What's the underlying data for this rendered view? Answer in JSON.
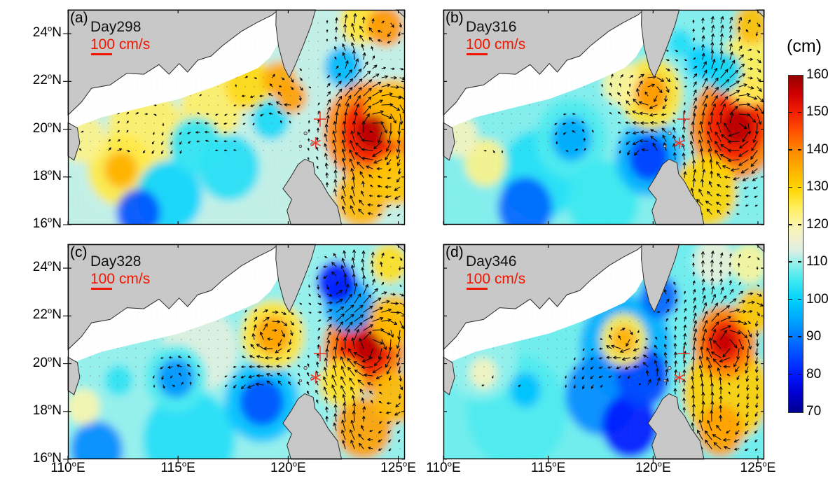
{
  "figure": {
    "background": "#ffffff",
    "land_color": "#c8c8c8",
    "coast_color": "#2b2b2b",
    "arrow_color": "#0a0a0a",
    "marker_color": "#ee3b2e",
    "scale_color": "#f21500",
    "scale_label": {
      "value": "100",
      "unit": "cm/s"
    },
    "axes": {
      "deg": "o",
      "x_values": [
        "110",
        "115",
        "120",
        "125"
      ],
      "x_suffix": "E",
      "y_values": [
        "24",
        "22",
        "20",
        "18",
        "16"
      ],
      "y_suffix": "N"
    },
    "colorbar": {
      "title": "(cm)",
      "min": 70,
      "max": 160,
      "ticks": [
        "160",
        "150",
        "140",
        "130",
        "120",
        "110",
        "100",
        "90",
        "80",
        "70"
      ],
      "stops": [
        {
          "v": 70,
          "c": "#000090"
        },
        {
          "v": 75,
          "c": "#0000cf"
        },
        {
          "v": 80,
          "c": "#0018ff"
        },
        {
          "v": 85,
          "c": "#0048ff"
        },
        {
          "v": 90,
          "c": "#0078ff"
        },
        {
          "v": 95,
          "c": "#00a8ff"
        },
        {
          "v": 100,
          "c": "#00d0ff"
        },
        {
          "v": 105,
          "c": "#3ce8f0"
        },
        {
          "v": 110,
          "c": "#96f0ec"
        },
        {
          "v": 113,
          "c": "#d8f0e4"
        },
        {
          "v": 116,
          "c": "#f0f0d2"
        },
        {
          "v": 120,
          "c": "#faf5ac"
        },
        {
          "v": 125,
          "c": "#ffee58"
        },
        {
          "v": 130,
          "c": "#ffd400"
        },
        {
          "v": 135,
          "c": "#ffb000"
        },
        {
          "v": 140,
          "c": "#ff8800"
        },
        {
          "v": 145,
          "c": "#ff5300"
        },
        {
          "v": 150,
          "c": "#f32000"
        },
        {
          "v": 155,
          "c": "#d00000"
        },
        {
          "v": 160,
          "c": "#940000"
        }
      ]
    }
  },
  "chart_data": {
    "type": "heatmap",
    "field": "sea surface height (cm)",
    "overlay": "surface current vectors, reference arrow 100 cm/s",
    "lon_range": [
      110,
      125.3
    ],
    "lat_range": [
      16,
      25
    ],
    "colorbar_range": [
      70,
      160
    ],
    "markers": [
      {
        "symbol": "+",
        "lon": 121.45,
        "lat": 20.42
      },
      {
        "symbol": "*",
        "lon": 121.25,
        "lat": 19.42
      }
    ],
    "panels": [
      {
        "label": "(a)",
        "day_label": "Day298",
        "base_ssh": 112,
        "features": [
          {
            "lon": 113.5,
            "lat": 20.0,
            "ssh": 124,
            "r": 1.7
          },
          {
            "lon": 116.5,
            "lat": 20.9,
            "ssh": 124,
            "r": 1.4
          },
          {
            "lon": 118.2,
            "lat": 21.9,
            "ssh": 129,
            "r": 1.1
          },
          {
            "lon": 119.6,
            "lat": 22.1,
            "ssh": 136,
            "r": 0.75
          },
          {
            "lon": 120.15,
            "lat": 21.35,
            "ssh": 137,
            "r": 0.7
          },
          {
            "lon": 112.4,
            "lat": 18.3,
            "ssh": 135,
            "r": 0.75
          },
          {
            "lon": 112.4,
            "lat": 18.3,
            "ssh": 126,
            "r": 1.5
          },
          {
            "lon": 110.7,
            "lat": 19.6,
            "ssh": 122,
            "r": 1.0
          },
          {
            "lon": 115.8,
            "lat": 19.3,
            "ssh": 104,
            "r": 1.2
          },
          {
            "lon": 117.3,
            "lat": 18.4,
            "ssh": 103,
            "r": 1.4
          },
          {
            "lon": 114.6,
            "lat": 17.2,
            "ssh": 101,
            "r": 1.5
          },
          {
            "lon": 113.2,
            "lat": 16.5,
            "ssh": 86,
            "r": 1.0
          },
          {
            "lon": 119.2,
            "lat": 20.4,
            "ssh": 102,
            "r": 0.85
          },
          {
            "lon": 122.5,
            "lat": 22.6,
            "ssh": 97,
            "r": 0.85
          },
          {
            "lon": 124.4,
            "lat": 24.3,
            "ssh": 138,
            "r": 0.85
          },
          {
            "lon": 123.3,
            "lat": 24.5,
            "ssh": 127,
            "r": 0.95
          },
          {
            "lon": 123.7,
            "lat": 19.9,
            "ssh": 140,
            "r": 2.1
          },
          {
            "lon": 123.7,
            "lat": 19.9,
            "ssh": 150,
            "r": 1.35
          },
          {
            "lon": 123.8,
            "lat": 19.9,
            "ssh": 157,
            "r": 0.7
          },
          {
            "lon": 123.3,
            "lat": 17.1,
            "ssh": 134,
            "r": 1.2
          },
          {
            "lon": 124.9,
            "lat": 17.9,
            "ssh": 132,
            "r": 1.1
          },
          {
            "lon": 121.1,
            "lat": 16.4,
            "ssh": 128,
            "r": 0.9
          },
          {
            "lon": 124.8,
            "lat": 20.8,
            "ssh": 133,
            "r": 1.3
          }
        ]
      },
      {
        "label": "(b)",
        "day_label": "Day316",
        "base_ssh": 109,
        "features": [
          {
            "lon": 119.9,
            "lat": 21.5,
            "ssh": 127,
            "r": 1.5
          },
          {
            "lon": 119.9,
            "lat": 21.5,
            "ssh": 138,
            "r": 0.8
          },
          {
            "lon": 118.5,
            "lat": 21.9,
            "ssh": 121,
            "r": 0.9
          },
          {
            "lon": 116.1,
            "lat": 19.6,
            "ssh": 106,
            "r": 1.7
          },
          {
            "lon": 116.1,
            "lat": 19.6,
            "ssh": 95,
            "r": 0.95
          },
          {
            "lon": 119.8,
            "lat": 18.8,
            "ssh": 96,
            "r": 1.6
          },
          {
            "lon": 119.8,
            "lat": 18.8,
            "ssh": 84,
            "r": 0.95
          },
          {
            "lon": 113.9,
            "lat": 16.7,
            "ssh": 88,
            "r": 1.3
          },
          {
            "lon": 114.6,
            "lat": 18.1,
            "ssh": 103,
            "r": 1.9
          },
          {
            "lon": 117.6,
            "lat": 17.0,
            "ssh": 105,
            "r": 1.7
          },
          {
            "lon": 112.0,
            "lat": 18.6,
            "ssh": 122,
            "r": 1.0
          },
          {
            "lon": 110.8,
            "lat": 19.7,
            "ssh": 118,
            "r": 0.85
          },
          {
            "lon": 123.9,
            "lat": 20.1,
            "ssh": 140,
            "r": 2.2
          },
          {
            "lon": 123.9,
            "lat": 20.1,
            "ssh": 150,
            "r": 1.5
          },
          {
            "lon": 124.0,
            "lat": 20.1,
            "ssh": 157,
            "r": 0.75
          },
          {
            "lon": 122.5,
            "lat": 17.4,
            "ssh": 130,
            "r": 1.5
          },
          {
            "lon": 122.3,
            "lat": 22.8,
            "ssh": 100,
            "r": 0.75
          },
          {
            "lon": 123.4,
            "lat": 22.4,
            "ssh": 101,
            "r": 0.85
          },
          {
            "lon": 124.7,
            "lat": 24.4,
            "ssh": 133,
            "r": 0.85
          },
          {
            "lon": 121.3,
            "lat": 23.6,
            "ssh": 103,
            "r": 0.6
          },
          {
            "lon": 124.6,
            "lat": 22.5,
            "ssh": 125,
            "r": 1.5
          }
        ]
      },
      {
        "label": "(c)",
        "day_label": "Day328",
        "base_ssh": 110,
        "features": [
          {
            "lon": 122.2,
            "lat": 23.4,
            "ssh": 80,
            "r": 0.9
          },
          {
            "lon": 122.75,
            "lat": 22.45,
            "ssh": 94,
            "r": 1.15
          },
          {
            "lon": 119.3,
            "lat": 21.2,
            "ssh": 127,
            "r": 1.45
          },
          {
            "lon": 119.3,
            "lat": 21.2,
            "ssh": 137,
            "r": 0.8
          },
          {
            "lon": 114.9,
            "lat": 19.4,
            "ssh": 106,
            "r": 1.4
          },
          {
            "lon": 114.9,
            "lat": 19.4,
            "ssh": 93,
            "r": 0.85
          },
          {
            "lon": 112.3,
            "lat": 19.3,
            "ssh": 104,
            "r": 0.65
          },
          {
            "lon": 118.8,
            "lat": 18.4,
            "ssh": 98,
            "r": 1.7
          },
          {
            "lon": 118.8,
            "lat": 18.4,
            "ssh": 86,
            "r": 1.0
          },
          {
            "lon": 115.5,
            "lat": 16.8,
            "ssh": 103,
            "r": 2.1
          },
          {
            "lon": 111.3,
            "lat": 16.4,
            "ssh": 92,
            "r": 1.2
          },
          {
            "lon": 110.7,
            "lat": 18.2,
            "ssh": 120,
            "r": 0.75
          },
          {
            "lon": 116.0,
            "lat": 20.6,
            "ssh": 114,
            "r": 1.7
          },
          {
            "lon": 123.5,
            "lat": 20.7,
            "ssh": 140,
            "r": 1.9
          },
          {
            "lon": 123.5,
            "lat": 20.7,
            "ssh": 150,
            "r": 1.3
          },
          {
            "lon": 123.6,
            "lat": 20.7,
            "ssh": 157,
            "r": 0.65
          },
          {
            "lon": 123.4,
            "lat": 17.3,
            "ssh": 137,
            "r": 1.3
          },
          {
            "lon": 124.9,
            "lat": 18.6,
            "ssh": 134,
            "r": 1.1
          },
          {
            "lon": 122.4,
            "lat": 19.2,
            "ssh": 128,
            "r": 1.0
          },
          {
            "lon": 124.6,
            "lat": 24.2,
            "ssh": 128,
            "r": 0.85
          },
          {
            "lon": 124.8,
            "lat": 21.8,
            "ssh": 133,
            "r": 1.1
          }
        ]
      },
      {
        "label": "(d)",
        "day_label": "Day346",
        "base_ssh": 108,
        "features": [
          {
            "lon": 118.7,
            "lat": 20.7,
            "ssh": 96,
            "r": 2.2
          },
          {
            "lon": 118.6,
            "lat": 21.0,
            "ssh": 125,
            "r": 1.1
          },
          {
            "lon": 118.6,
            "lat": 21.0,
            "ssh": 135,
            "r": 0.6
          },
          {
            "lon": 119.5,
            "lat": 19.4,
            "ssh": 85,
            "r": 1.25
          },
          {
            "lon": 118.9,
            "lat": 17.4,
            "ssh": 80,
            "r": 1.35
          },
          {
            "lon": 117.5,
            "lat": 18.7,
            "ssh": 92,
            "r": 1.7
          },
          {
            "lon": 113.9,
            "lat": 18.9,
            "ssh": 98,
            "r": 0.75
          },
          {
            "lon": 113.5,
            "lat": 18.0,
            "ssh": 106,
            "r": 2.4
          },
          {
            "lon": 111.8,
            "lat": 20.2,
            "ssh": 110,
            "r": 1.7
          },
          {
            "lon": 111.9,
            "lat": 19.6,
            "ssh": 118,
            "r": 0.65
          },
          {
            "lon": 120.3,
            "lat": 22.8,
            "ssh": 88,
            "r": 0.9
          },
          {
            "lon": 123.4,
            "lat": 20.9,
            "ssh": 140,
            "r": 1.55
          },
          {
            "lon": 123.4,
            "lat": 20.9,
            "ssh": 149,
            "r": 1.0
          },
          {
            "lon": 123.4,
            "lat": 20.9,
            "ssh": 156,
            "r": 0.55
          },
          {
            "lon": 123.5,
            "lat": 18.8,
            "ssh": 131,
            "r": 2.1
          },
          {
            "lon": 123.2,
            "lat": 17.2,
            "ssh": 137,
            "r": 1.1
          },
          {
            "lon": 124.6,
            "lat": 24.2,
            "ssh": 121,
            "r": 0.85
          },
          {
            "lon": 122.9,
            "lat": 24.3,
            "ssh": 115,
            "r": 0.95
          },
          {
            "lon": 124.9,
            "lat": 22.2,
            "ssh": 132,
            "r": 0.95
          }
        ]
      }
    ]
  }
}
